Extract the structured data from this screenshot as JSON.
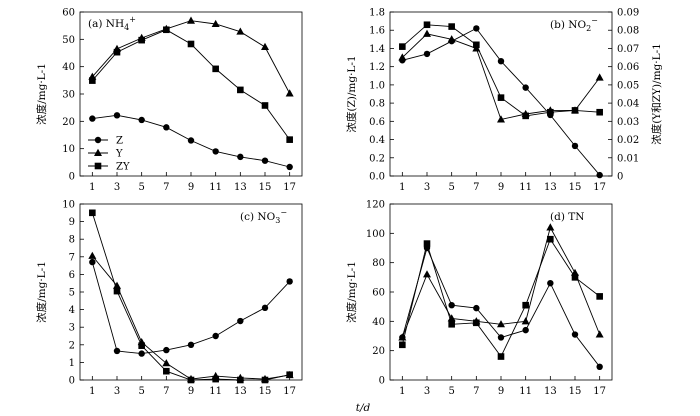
{
  "figure": {
    "xlabel": "t/d"
  },
  "chart_data": [
    {
      "type": "line",
      "title": "(a) NH4+",
      "ylabel": "浓度/mg·L-1",
      "x": [
        1,
        3,
        5,
        7,
        9,
        11,
        13,
        15,
        17
      ],
      "xlim": [
        0,
        18
      ],
      "ylim": [
        0,
        60
      ],
      "yticks": [
        0,
        10,
        20,
        30,
        40,
        50,
        60
      ],
      "legend": {
        "position": "left",
        "entries": [
          "Z",
          "Y",
          "ZY"
        ]
      },
      "series": [
        {
          "name": "Z",
          "marker": "circle",
          "values": [
            21.0,
            22.2,
            20.5,
            17.8,
            13.0,
            9.0,
            7.0,
            5.6,
            3.3
          ]
        },
        {
          "name": "Y",
          "marker": "triangle",
          "values": [
            36.3,
            46.5,
            50.5,
            53.8,
            56.8,
            55.6,
            52.8,
            47.2,
            30.2
          ]
        },
        {
          "name": "ZY",
          "marker": "square",
          "values": [
            34.9,
            45.3,
            49.7,
            53.5,
            48.3,
            39.2,
            31.5,
            25.8,
            13.3
          ]
        }
      ]
    },
    {
      "type": "line",
      "title": "(b) NO2-",
      "ylabel": "浓度(Z)/mg·L-1",
      "ylabel_right": "浓度(Y和ZY)/mg·L-1",
      "x": [
        1,
        3,
        5,
        7,
        9,
        11,
        13,
        15,
        17
      ],
      "xlim": [
        0,
        18
      ],
      "ylim": [
        0,
        1.8
      ],
      "yticks": [
        0,
        0.2,
        0.4,
        0.6,
        0.8,
        1.0,
        1.2,
        1.4,
        1.6,
        1.8
      ],
      "ylim_right": [
        0,
        0.09
      ],
      "yticks_right": [
        0,
        0.01,
        0.02,
        0.03,
        0.04,
        0.05,
        0.06,
        0.07,
        0.08,
        0.09
      ],
      "series": [
        {
          "name": "Z",
          "marker": "circle",
          "axis": "left",
          "values": [
            1.27,
            1.34,
            1.48,
            1.62,
            1.26,
            0.97,
            0.67,
            0.33,
            0.01
          ]
        },
        {
          "name": "Y",
          "marker": "triangle",
          "axis": "right",
          "values": [
            0.065,
            0.078,
            0.075,
            0.07,
            0.031,
            0.034,
            0.036,
            0.036,
            0.054
          ]
        },
        {
          "name": "ZY",
          "marker": "square",
          "axis": "right",
          "values": [
            0.071,
            0.083,
            0.082,
            0.072,
            0.043,
            0.033,
            0.035,
            0.036,
            0.035
          ]
        }
      ]
    },
    {
      "type": "line",
      "title": "(c) NO3-",
      "ylabel": "浓度/mg·L-1",
      "x": [
        1,
        3,
        5,
        7,
        9,
        11,
        13,
        15,
        17
      ],
      "xlim": [
        0,
        18
      ],
      "ylim": [
        0,
        10
      ],
      "yticks": [
        0,
        1,
        2,
        3,
        4,
        5,
        6,
        7,
        8,
        9,
        10
      ],
      "series": [
        {
          "name": "Z",
          "marker": "circle",
          "values": [
            6.7,
            1.65,
            1.5,
            1.7,
            2.0,
            2.5,
            3.35,
            4.1,
            5.6
          ]
        },
        {
          "name": "Y",
          "marker": "triangle",
          "values": [
            7.05,
            5.35,
            2.15,
            0.95,
            0.05,
            0.22,
            0.12,
            0.05,
            0.28
          ]
        },
        {
          "name": "ZY",
          "marker": "square",
          "values": [
            9.5,
            5.05,
            1.95,
            0.5,
            0.0,
            0.05,
            0.0,
            0.0,
            0.3
          ]
        }
      ]
    },
    {
      "type": "line",
      "title": "(d) TN",
      "ylabel": "浓度/mg·L-1",
      "x": [
        1,
        3,
        5,
        7,
        9,
        11,
        13,
        15,
        17
      ],
      "xlim": [
        0,
        18
      ],
      "ylim": [
        0,
        120
      ],
      "yticks": [
        0,
        20,
        40,
        60,
        80,
        100,
        120
      ],
      "series": [
        {
          "name": "Z",
          "marker": "circle",
          "values": [
            29,
            90,
            51,
            49,
            29,
            34,
            66,
            31,
            9
          ]
        },
        {
          "name": "Y",
          "marker": "triangle",
          "values": [
            29,
            72,
            42,
            40,
            38,
            40,
            104,
            73,
            31
          ]
        },
        {
          "name": "ZY",
          "marker": "square",
          "values": [
            24,
            93,
            38,
            39,
            16,
            51,
            96,
            70,
            57
          ]
        }
      ]
    }
  ]
}
